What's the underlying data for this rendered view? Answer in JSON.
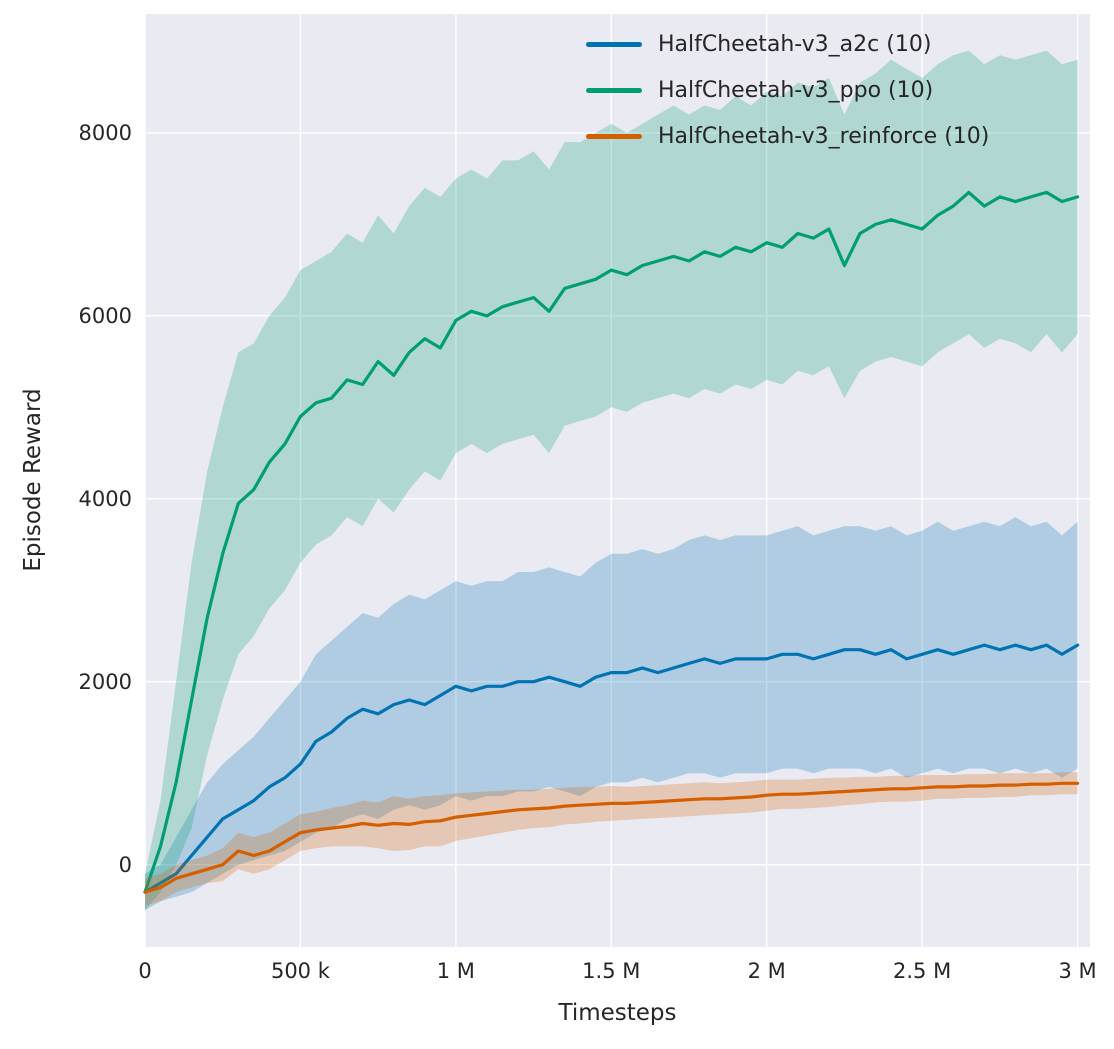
{
  "figure": {
    "background": "#ffffff",
    "plot_background": "#eaeaf2",
    "grid_color": "#ffffff",
    "text_color": "#262626"
  },
  "chart_data": {
    "type": "line",
    "title": "",
    "xlabel": "Timesteps",
    "ylabel": "Episode Reward",
    "grid": true,
    "legend_position": "upper center inside plot",
    "xlim": [
      0,
      3040000
    ],
    "ylim": [
      -900,
      9300
    ],
    "x_ticks": {
      "values": [
        0,
        500000,
        1000000,
        1500000,
        2000000,
        2500000,
        3000000
      ],
      "labels": [
        "0",
        "500 k",
        "1 M",
        "1.5 M",
        "2 M",
        "2.5 M",
        "3 M"
      ]
    },
    "y_ticks": {
      "values": [
        0,
        2000,
        4000,
        6000,
        8000
      ],
      "labels": [
        "0",
        "2000",
        "4000",
        "6000",
        "8000"
      ]
    },
    "x_values": [
      0,
      50000,
      100000,
      150000,
      200000,
      250000,
      300000,
      350000,
      400000,
      450000,
      500000,
      550000,
      600000,
      650000,
      700000,
      750000,
      800000,
      850000,
      900000,
      950000,
      1000000,
      1050000,
      1100000,
      1150000,
      1200000,
      1250000,
      1300000,
      1350000,
      1400000,
      1450000,
      1500000,
      1550000,
      1600000,
      1650000,
      1700000,
      1750000,
      1800000,
      1850000,
      1900000,
      1950000,
      2000000,
      2050000,
      2100000,
      2150000,
      2200000,
      2250000,
      2300000,
      2350000,
      2400000,
      2450000,
      2500000,
      2550000,
      2600000,
      2650000,
      2700000,
      2750000,
      2800000,
      2850000,
      2900000,
      2950000,
      3000000
    ],
    "series": [
      {
        "name": "HalfCheetah-v3_a2c (10)",
        "color": "#0173b2",
        "band_opacity": 0.25,
        "mean": [
          -300,
          -200,
          -100,
          100,
          300,
          500,
          600,
          700,
          850,
          950,
          1100,
          1350,
          1450,
          1600,
          1700,
          1650,
          1750,
          1800,
          1750,
          1850,
          1950,
          1900,
          1950,
          1950,
          2000,
          2000,
          2050,
          2000,
          1950,
          2050,
          2100,
          2100,
          2150,
          2100,
          2150,
          2200,
          2250,
          2200,
          2250,
          2250,
          2250,
          2300,
          2300,
          2250,
          2300,
          2350,
          2350,
          2300,
          2350,
          2250,
          2300,
          2350,
          2300,
          2350,
          2400,
          2350,
          2400,
          2350,
          2400,
          2300,
          2400
        ],
        "upper": [
          -100,
          0,
          300,
          600,
          900,
          1100,
          1250,
          1400,
          1600,
          1800,
          2000,
          2300,
          2450,
          2600,
          2750,
          2700,
          2850,
          2950,
          2900,
          3000,
          3100,
          3050,
          3100,
          3100,
          3200,
          3200,
          3250,
          3200,
          3150,
          3300,
          3400,
          3400,
          3450,
          3400,
          3450,
          3550,
          3600,
          3550,
          3600,
          3600,
          3600,
          3650,
          3700,
          3600,
          3650,
          3700,
          3700,
          3650,
          3700,
          3600,
          3650,
          3750,
          3650,
          3700,
          3750,
          3700,
          3800,
          3700,
          3750,
          3600,
          3750
        ],
        "lower": [
          -500,
          -400,
          -350,
          -300,
          -200,
          -100,
          0,
          50,
          100,
          150,
          250,
          350,
          400,
          500,
          550,
          500,
          600,
          650,
          600,
          650,
          750,
          700,
          750,
          750,
          800,
          800,
          850,
          800,
          750,
          850,
          900,
          900,
          950,
          900,
          950,
          1000,
          1000,
          950,
          1000,
          1000,
          1000,
          1050,
          1050,
          1000,
          1050,
          1050,
          1050,
          1000,
          1050,
          950,
          1000,
          1050,
          1000,
          1050,
          1050,
          1000,
          1050,
          1000,
          1050,
          950,
          1050
        ]
      },
      {
        "name": "HalfCheetah-v3_ppo (10)",
        "color": "#029e73",
        "band_opacity": 0.25,
        "mean": [
          -300,
          200,
          900,
          1800,
          2700,
          3400,
          3950,
          4100,
          4400,
          4600,
          4900,
          5050,
          5100,
          5300,
          5250,
          5500,
          5350,
          5600,
          5750,
          5650,
          5950,
          6050,
          6000,
          6100,
          6150,
          6200,
          6050,
          6300,
          6350,
          6400,
          6500,
          6450,
          6550,
          6600,
          6650,
          6600,
          6700,
          6650,
          6750,
          6700,
          6800,
          6750,
          6900,
          6850,
          6950,
          6550,
          6900,
          7000,
          7050,
          7000,
          6950,
          7100,
          7200,
          7350,
          7200,
          7300,
          7250,
          7300,
          7350,
          7250,
          7300
        ],
        "upper": [
          -100,
          700,
          2000,
          3300,
          4300,
          5000,
          5600,
          5700,
          6000,
          6200,
          6500,
          6600,
          6700,
          6900,
          6800,
          7100,
          6900,
          7200,
          7400,
          7300,
          7500,
          7600,
          7500,
          7700,
          7700,
          7800,
          7600,
          7900,
          7900,
          8000,
          8100,
          8000,
          8100,
          8200,
          8300,
          8200,
          8300,
          8250,
          8400,
          8300,
          8450,
          8400,
          8550,
          8500,
          8600,
          8200,
          8550,
          8650,
          8800,
          8700,
          8600,
          8750,
          8850,
          8900,
          8750,
          8850,
          8800,
          8850,
          8900,
          8750,
          8800
        ],
        "lower": [
          -500,
          -300,
          0,
          400,
          1200,
          1800,
          2300,
          2500,
          2800,
          3000,
          3300,
          3500,
          3600,
          3800,
          3700,
          4000,
          3850,
          4100,
          4300,
          4200,
          4500,
          4600,
          4500,
          4600,
          4650,
          4700,
          4500,
          4800,
          4850,
          4900,
          5000,
          4950,
          5050,
          5100,
          5150,
          5100,
          5200,
          5150,
          5250,
          5200,
          5300,
          5250,
          5400,
          5350,
          5450,
          5100,
          5400,
          5500,
          5550,
          5500,
          5450,
          5600,
          5700,
          5800,
          5650,
          5750,
          5700,
          5600,
          5800,
          5600,
          5800
        ]
      },
      {
        "name": "HalfCheetah-v3_reinforce (10)",
        "color": "#d55e00",
        "band_opacity": 0.25,
        "mean": [
          -300,
          -250,
          -150,
          -100,
          -50,
          0,
          150,
          100,
          150,
          250,
          350,
          380,
          400,
          420,
          450,
          430,
          450,
          440,
          470,
          480,
          520,
          540,
          560,
          580,
          600,
          610,
          620,
          640,
          650,
          660,
          670,
          670,
          680,
          690,
          700,
          710,
          720,
          720,
          730,
          740,
          760,
          770,
          770,
          780,
          790,
          800,
          810,
          820,
          830,
          830,
          840,
          850,
          850,
          860,
          860,
          870,
          870,
          880,
          880,
          890,
          890
        ],
        "upper": [
          -150,
          -100,
          0,
          50,
          100,
          180,
          350,
          300,
          350,
          450,
          550,
          580,
          620,
          650,
          700,
          680,
          750,
          720,
          750,
          760,
          780,
          790,
          800,
          810,
          820,
          820,
          830,
          840,
          850,
          850,
          860,
          850,
          860,
          870,
          880,
          890,
          900,
          890,
          900,
          910,
          930,
          930,
          930,
          940,
          950,
          950,
          960,
          960,
          970,
          970,
          980,
          980,
          980,
          990,
          990,
          1000,
          1000,
          1000,
          1000,
          1010,
          1010
        ],
        "lower": [
          -450,
          -400,
          -300,
          -250,
          -200,
          -180,
          -50,
          -100,
          -50,
          50,
          150,
          180,
          200,
          200,
          200,
          180,
          150,
          160,
          200,
          200,
          260,
          290,
          320,
          350,
          380,
          400,
          410,
          440,
          450,
          470,
          480,
          490,
          500,
          510,
          520,
          530,
          540,
          550,
          560,
          570,
          590,
          610,
          610,
          620,
          630,
          650,
          660,
          680,
          690,
          690,
          700,
          720,
          720,
          730,
          730,
          740,
          740,
          760,
          760,
          770,
          770
        ]
      }
    ]
  }
}
